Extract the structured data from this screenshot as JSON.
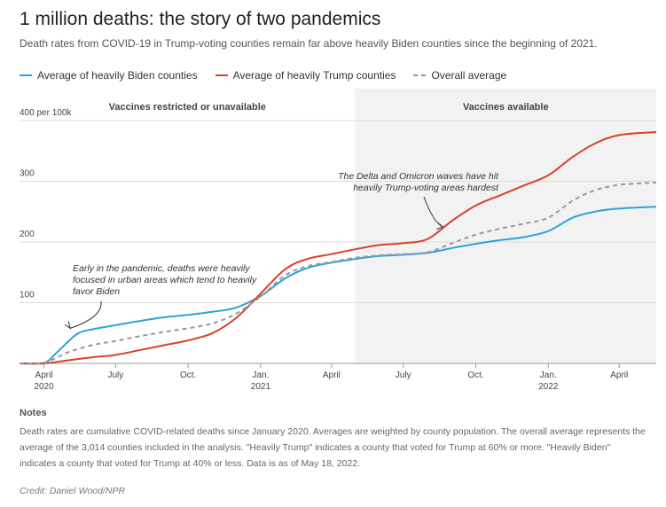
{
  "title": "1 million deaths: the story of two pandemics",
  "subtitle": "Death rates from COVID-19 in Trump-voting counties remain far above heavily Biden counties since the beginning of 2021.",
  "legend": [
    {
      "label": "Average of heavily Biden counties",
      "color": "#2ea3d5",
      "style": "solid"
    },
    {
      "label": "Average of heavily Trump counties",
      "color": "#d8422c",
      "style": "solid"
    },
    {
      "label": "Overall average",
      "color": "#999999",
      "style": "dashed"
    }
  ],
  "notes_title": "Notes",
  "notes": "Death rates are cumulative COVID-related deaths since January 2020. Averages are weighted by county population. The overall average represents the average of the 3,014 counties included in the analysis. \"Heavily Trump\" indicates a county that voted for Trump at 60% or more. \"Heavily Biden\" indicates a county that voted for Trump at 40% or less. Data is as of May 18, 2022.",
  "credit": "Credit: Daniel Wood/NPR",
  "chart_data": {
    "type": "line",
    "ylim": [
      0,
      400
    ],
    "ylabel": "",
    "xlabel": "",
    "x_range": [
      "2020-03-01",
      "2022-05-18"
    ],
    "y_ticks": [
      {
        "value": 400,
        "label": "400 per 100k"
      },
      {
        "value": 300,
        "label": "300"
      },
      {
        "value": 200,
        "label": "200"
      },
      {
        "value": 100,
        "label": "100"
      }
    ],
    "x_ticks": [
      {
        "date": "2020-04-01",
        "label": "April",
        "year": "2020"
      },
      {
        "date": "2020-07-01",
        "label": "July",
        "year": ""
      },
      {
        "date": "2020-10-01",
        "label": "Oct.",
        "year": ""
      },
      {
        "date": "2021-01-01",
        "label": "Jan.",
        "year": "2021"
      },
      {
        "date": "2021-04-01",
        "label": "April",
        "year": ""
      },
      {
        "date": "2021-07-01",
        "label": "July",
        "year": ""
      },
      {
        "date": "2021-10-01",
        "label": "Oct.",
        "year": ""
      },
      {
        "date": "2022-01-01",
        "label": "Jan.",
        "year": "2022"
      },
      {
        "date": "2022-04-01",
        "label": "April",
        "year": ""
      }
    ],
    "grid": true,
    "regions": [
      {
        "label": "Vaccines restricted or unavailable",
        "start": "2020-03-01",
        "end": "2021-05-01",
        "shaded": false
      },
      {
        "label": "Vaccines available",
        "start": "2021-05-01",
        "end": "2022-05-18",
        "shaded": true,
        "color": "#f2f2f2"
      }
    ],
    "series": [
      {
        "name": "Average of heavily Biden counties",
        "color": "#2ea3d5",
        "dashed": false,
        "points": [
          [
            "2020-03-01",
            0
          ],
          [
            "2020-04-01",
            1
          ],
          [
            "2020-04-15",
            15
          ],
          [
            "2020-05-01",
            35
          ],
          [
            "2020-05-15",
            50
          ],
          [
            "2020-06-01",
            56
          ],
          [
            "2020-07-01",
            63
          ],
          [
            "2020-08-01",
            70
          ],
          [
            "2020-09-01",
            76
          ],
          [
            "2020-10-01",
            80
          ],
          [
            "2020-11-01",
            85
          ],
          [
            "2020-12-01",
            92
          ],
          [
            "2021-01-01",
            111
          ],
          [
            "2021-02-01",
            140
          ],
          [
            "2021-03-01",
            157
          ],
          [
            "2021-04-01",
            166
          ],
          [
            "2021-05-01",
            172
          ],
          [
            "2021-06-01",
            177
          ],
          [
            "2021-07-01",
            179
          ],
          [
            "2021-08-01",
            182
          ],
          [
            "2021-09-01",
            190
          ],
          [
            "2021-10-01",
            197
          ],
          [
            "2021-11-01",
            203
          ],
          [
            "2021-12-01",
            208
          ],
          [
            "2022-01-01",
            218
          ],
          [
            "2022-02-01",
            240
          ],
          [
            "2022-03-01",
            250
          ],
          [
            "2022-04-01",
            255
          ],
          [
            "2022-05-18",
            258
          ]
        ]
      },
      {
        "name": "Average of heavily Trump counties",
        "color": "#d8422c",
        "dashed": false,
        "points": [
          [
            "2020-03-01",
            0
          ],
          [
            "2020-04-01",
            0
          ],
          [
            "2020-05-01",
            5
          ],
          [
            "2020-06-01",
            10
          ],
          [
            "2020-07-01",
            14
          ],
          [
            "2020-08-01",
            22
          ],
          [
            "2020-09-01",
            30
          ],
          [
            "2020-10-01",
            38
          ],
          [
            "2020-11-01",
            50
          ],
          [
            "2020-12-01",
            75
          ],
          [
            "2021-01-01",
            115
          ],
          [
            "2021-02-01",
            155
          ],
          [
            "2021-03-01",
            172
          ],
          [
            "2021-04-01",
            180
          ],
          [
            "2021-05-01",
            188
          ],
          [
            "2021-06-01",
            195
          ],
          [
            "2021-07-01",
            198
          ],
          [
            "2021-08-01",
            205
          ],
          [
            "2021-09-01",
            235
          ],
          [
            "2021-10-01",
            260
          ],
          [
            "2021-11-01",
            277
          ],
          [
            "2021-12-01",
            293
          ],
          [
            "2022-01-01",
            310
          ],
          [
            "2022-02-01",
            340
          ],
          [
            "2022-03-01",
            362
          ],
          [
            "2022-04-01",
            376
          ],
          [
            "2022-05-18",
            381
          ]
        ]
      },
      {
        "name": "Overall average",
        "color": "#999999",
        "dashed": true,
        "points": [
          [
            "2020-03-01",
            0
          ],
          [
            "2020-04-01",
            1
          ],
          [
            "2020-05-01",
            18
          ],
          [
            "2020-06-01",
            30
          ],
          [
            "2020-07-01",
            37
          ],
          [
            "2020-08-01",
            45
          ],
          [
            "2020-09-01",
            52
          ],
          [
            "2020-10-01",
            58
          ],
          [
            "2020-11-01",
            66
          ],
          [
            "2020-12-01",
            82
          ],
          [
            "2021-01-01",
            110
          ],
          [
            "2021-02-01",
            145
          ],
          [
            "2021-03-01",
            160
          ],
          [
            "2021-04-01",
            167
          ],
          [
            "2021-05-01",
            174
          ],
          [
            "2021-06-01",
            178
          ],
          [
            "2021-07-01",
            180
          ],
          [
            "2021-08-01",
            183
          ],
          [
            "2021-09-01",
            198
          ],
          [
            "2021-10-01",
            212
          ],
          [
            "2021-11-01",
            222
          ],
          [
            "2021-12-01",
            230
          ],
          [
            "2022-01-01",
            240
          ],
          [
            "2022-02-01",
            268
          ],
          [
            "2022-03-01",
            285
          ],
          [
            "2022-04-01",
            294
          ],
          [
            "2022-05-18",
            298
          ]
        ]
      }
    ],
    "annotations": [
      {
        "lines": [
          "Early in the pandemic, deaths were heavily",
          "focused in urban areas which tend to heavily",
          "favor Biden"
        ],
        "target": [
          "2020-05-01",
          55
        ]
      },
      {
        "lines": [
          "The Delta and Omicron waves have hit",
          "heavily Trump-voting areas hardest"
        ],
        "target": [
          "2021-08-20",
          225
        ]
      }
    ]
  }
}
